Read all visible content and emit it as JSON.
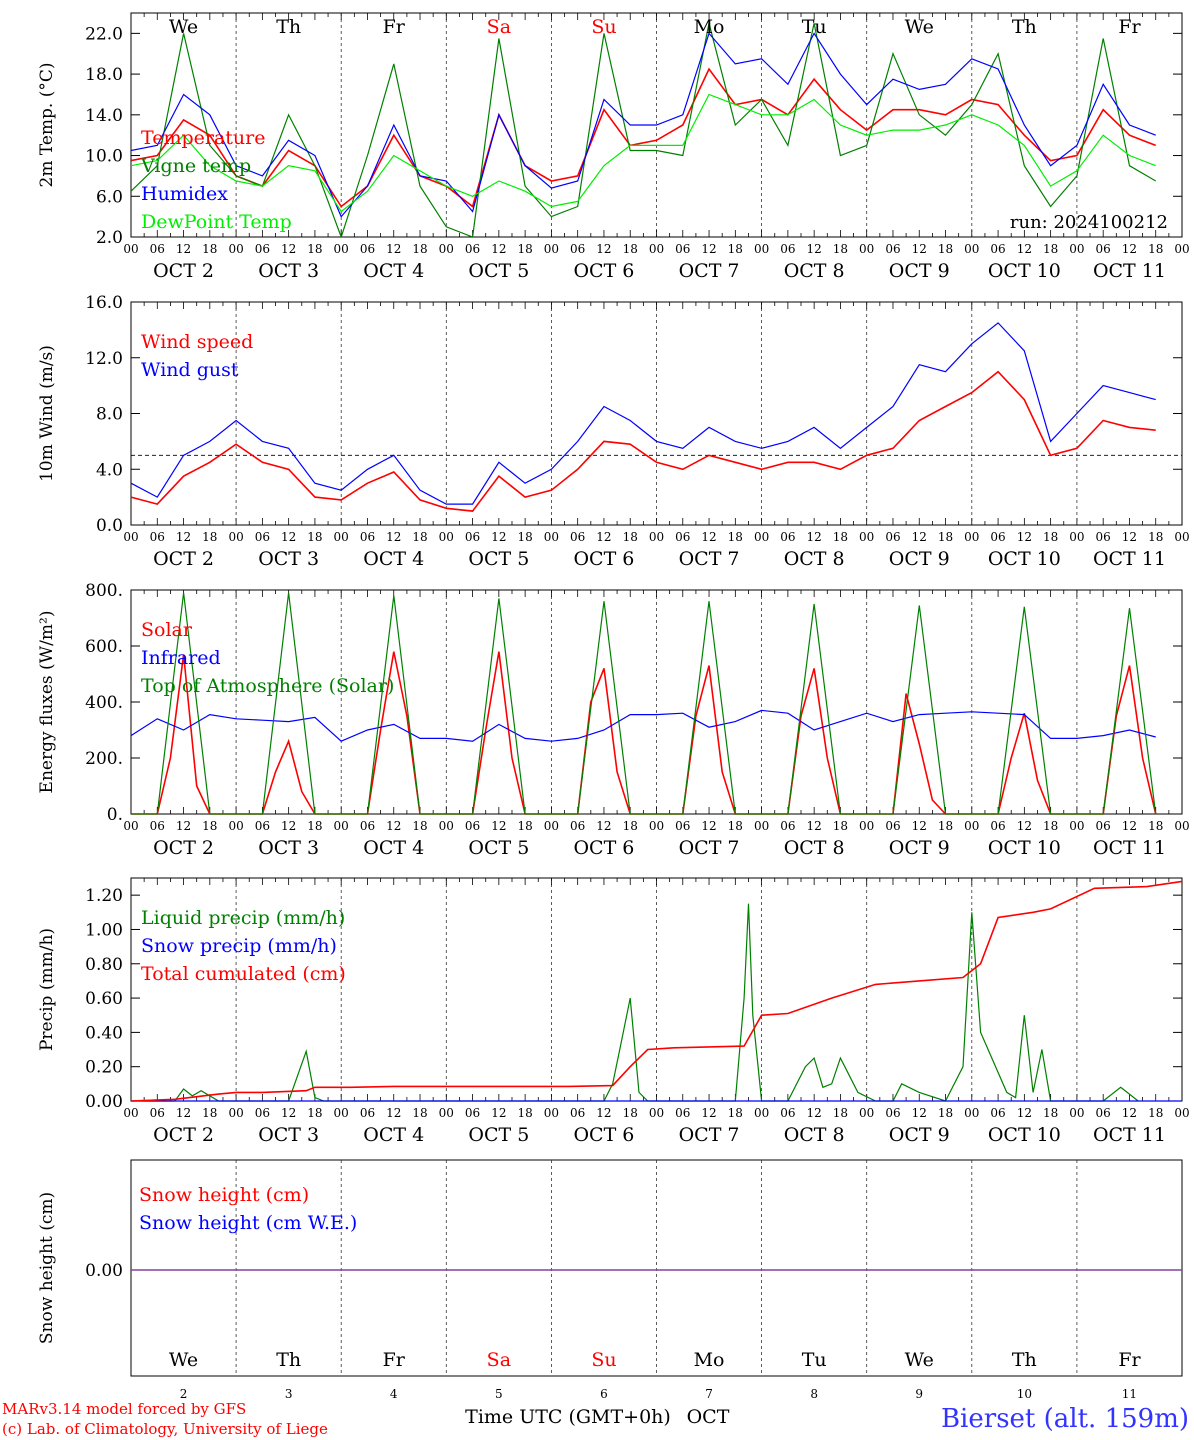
{
  "days": [
    {
      "abbr": "We",
      "num": "2",
      "oct": "OCT  2",
      "weekend": false
    },
    {
      "abbr": "Th",
      "num": "3",
      "oct": "OCT  3",
      "weekend": false
    },
    {
      "abbr": "Fr",
      "num": "4",
      "oct": "OCT  4",
      "weekend": false
    },
    {
      "abbr": "Sa",
      "num": "5",
      "oct": "OCT  5",
      "weekend": true
    },
    {
      "abbr": "Su",
      "num": "6",
      "oct": "OCT  6",
      "weekend": true
    },
    {
      "abbr": "Mo",
      "num": "7",
      "oct": "OCT  7",
      "weekend": false
    },
    {
      "abbr": "Tu",
      "num": "8",
      "oct": "OCT  8",
      "weekend": false
    },
    {
      "abbr": "We",
      "num": "9",
      "oct": "OCT  9",
      "weekend": false
    },
    {
      "abbr": "Th",
      "num": "10",
      "oct": "OCT 10",
      "weekend": false
    },
    {
      "abbr": "Fr",
      "num": "11",
      "oct": "OCT 11",
      "weekend": false
    }
  ],
  "hour_labels": [
    "00",
    "06",
    "12",
    "18"
  ],
  "colors": {
    "red": "#ff0000",
    "green": "#008000",
    "blue": "#0000ff",
    "lightgreen": "#00ee00",
    "purple": "#8040a0",
    "bierset": "#3333ff"
  },
  "run_label": "run: 2024100212",
  "x_axis_title": "Time UTC (GMT+0h)",
  "x_axis_month": "OCT",
  "credit_model": "MARv3.14 model forced by GFS",
  "credit_lab": "(c) Lab. of Climatology, University of Liege",
  "station": "Bierset (alt. 159m)",
  "chart_data": [
    {
      "type": "line",
      "ylabel": "2m Temp. (°C)",
      "ylim": [
        2,
        24
      ],
      "yticks": [
        "2.0",
        "6.0",
        "10.0",
        "14.0",
        "18.0",
        "22.0"
      ],
      "x_unit": "hours since OCT 2 00 UTC",
      "series": [
        {
          "name": "Temperature",
          "color": "red",
          "x": [
            0,
            6,
            12,
            18,
            24,
            30,
            36,
            42,
            48,
            54,
            60,
            66,
            72,
            78,
            84,
            90,
            96,
            102,
            108,
            114,
            120,
            126,
            132,
            138,
            144,
            150,
            156,
            162,
            168,
            174,
            180,
            186,
            192,
            198,
            204,
            210,
            216,
            222,
            228,
            234
          ],
          "y": [
            9.5,
            10,
            13.5,
            12,
            8,
            7,
            10.5,
            9,
            5,
            7,
            12,
            8,
            7,
            5,
            14,
            9,
            7.5,
            8,
            14.5,
            11,
            11.5,
            13,
            18.5,
            15,
            15.5,
            14,
            17.5,
            14.5,
            12.5,
            14.5,
            14.5,
            14,
            15.5,
            15,
            12,
            9.5,
            10,
            14.5,
            12,
            11
          ]
        },
        {
          "name": "Vigne temp",
          "color": "green",
          "x": [
            0,
            6,
            12,
            18,
            24,
            30,
            36,
            42,
            48,
            54,
            60,
            66,
            72,
            78,
            84,
            90,
            96,
            102,
            108,
            114,
            120,
            126,
            132,
            138,
            144,
            150,
            156,
            162,
            168,
            174,
            180,
            186,
            192,
            198,
            204,
            210,
            216,
            222,
            228,
            234
          ],
          "y": [
            6.5,
            9,
            22,
            11,
            8,
            7,
            14,
            9,
            2,
            10,
            19,
            7,
            3,
            2,
            21.5,
            7,
            4,
            5,
            22,
            10.5,
            10.5,
            10,
            23,
            13,
            15.5,
            11,
            23,
            10,
            11,
            20,
            14,
            12,
            15,
            20,
            9,
            5,
            8,
            21.5,
            9,
            7.5
          ]
        },
        {
          "name": "Humidex",
          "color": "blue",
          "x": [
            0,
            6,
            12,
            18,
            24,
            30,
            36,
            42,
            48,
            54,
            60,
            66,
            72,
            78,
            84,
            90,
            96,
            102,
            108,
            114,
            120,
            126,
            132,
            138,
            144,
            150,
            156,
            162,
            168,
            174,
            180,
            186,
            192,
            198,
            204,
            210,
            216,
            222,
            228,
            234
          ],
          "y": [
            10.5,
            11,
            16,
            14,
            9,
            8,
            11.5,
            10,
            4,
            7,
            13,
            8,
            7.5,
            4.5,
            14,
            9,
            6.8,
            7.5,
            15.5,
            13,
            13,
            14,
            22,
            19,
            19.5,
            17,
            22,
            18,
            15,
            17.5,
            16.5,
            17,
            19.5,
            18.5,
            13,
            9,
            11,
            17,
            13,
            12
          ]
        },
        {
          "name": "DewPoint Temp",
          "color": "lightgreen",
          "x": [
            0,
            6,
            12,
            18,
            24,
            30,
            36,
            42,
            48,
            54,
            60,
            66,
            72,
            78,
            84,
            90,
            96,
            102,
            108,
            114,
            120,
            126,
            132,
            138,
            144,
            150,
            156,
            162,
            168,
            174,
            180,
            186,
            192,
            198,
            204,
            210,
            216,
            222,
            228,
            234
          ],
          "y": [
            9,
            9.5,
            12,
            9,
            7.5,
            7,
            9,
            8.5,
            4.5,
            6.5,
            10,
            8.5,
            7,
            6,
            7.5,
            6.5,
            5,
            5.5,
            9,
            11,
            11,
            11,
            16,
            15,
            14,
            14,
            15.5,
            13,
            12,
            12.5,
            12.5,
            13,
            14,
            13,
            11,
            7,
            8.5,
            12,
            10,
            9
          ]
        }
      ]
    },
    {
      "type": "line",
      "ylabel": "10m Wind (m/s)",
      "ylim": [
        0,
        16
      ],
      "yticks": [
        "0.0",
        "4.0",
        "8.0",
        "12.0",
        "16.0"
      ],
      "threshold": 5,
      "series": [
        {
          "name": "Wind speed",
          "color": "red",
          "x": [
            0,
            6,
            12,
            18,
            24,
            30,
            36,
            42,
            48,
            54,
            60,
            66,
            72,
            78,
            84,
            90,
            96,
            102,
            108,
            114,
            120,
            126,
            132,
            138,
            144,
            150,
            156,
            162,
            168,
            174,
            180,
            186,
            192,
            198,
            204,
            210,
            216,
            222,
            228,
            234
          ],
          "y": [
            2,
            1.5,
            3.5,
            4.5,
            5.8,
            4.5,
            4,
            2,
            1.8,
            3,
            3.8,
            1.8,
            1.2,
            1,
            3.5,
            2,
            2.5,
            4,
            6,
            5.8,
            4.5,
            4,
            5,
            4.5,
            4,
            4.5,
            4.5,
            4,
            5,
            5.5,
            7.5,
            8.5,
            9.5,
            11,
            9,
            5,
            5.5,
            7.5,
            7,
            6.8
          ]
        },
        {
          "name": "Wind gust",
          "color": "blue",
          "x": [
            0,
            6,
            12,
            18,
            24,
            30,
            36,
            42,
            48,
            54,
            60,
            66,
            72,
            78,
            84,
            90,
            96,
            102,
            108,
            114,
            120,
            126,
            132,
            138,
            144,
            150,
            156,
            162,
            168,
            174,
            180,
            186,
            192,
            198,
            204,
            210,
            216,
            222,
            228,
            234
          ],
          "y": [
            3,
            2,
            5,
            6,
            7.5,
            6,
            5.5,
            3,
            2.5,
            4,
            5,
            2.5,
            1.5,
            1.5,
            4.5,
            3,
            4,
            6,
            8.5,
            7.5,
            6,
            5.5,
            7,
            6,
            5.5,
            6,
            7,
            5.5,
            7,
            8.5,
            11.5,
            11,
            13,
            14.5,
            12.5,
            6,
            8,
            10,
            9.5,
            9
          ]
        }
      ]
    },
    {
      "type": "line",
      "ylabel": "Energy fluxes (W/m²)",
      "ylim": [
        0,
        800
      ],
      "yticks": [
        "0.",
        "200.",
        "400.",
        "600.",
        "800."
      ],
      "series": [
        {
          "name": "Solar",
          "color": "red",
          "x": [
            0,
            6,
            9,
            12,
            15,
            18,
            24,
            30,
            33,
            36,
            39,
            42,
            48,
            54,
            57,
            60,
            63,
            66,
            72,
            78,
            81,
            84,
            87,
            90,
            96,
            102,
            105,
            108,
            111,
            114,
            120,
            126,
            129,
            132,
            135,
            138,
            144,
            150,
            153,
            156,
            159,
            162,
            168,
            174,
            177,
            180,
            183,
            186,
            192,
            198,
            201,
            204,
            207,
            210,
            216,
            222,
            225,
            228,
            231,
            234
          ],
          "y": [
            0,
            0,
            200,
            570,
            100,
            0,
            0,
            0,
            150,
            260,
            80,
            0,
            0,
            0,
            300,
            580,
            350,
            0,
            0,
            0,
            300,
            580,
            200,
            0,
            0,
            0,
            400,
            520,
            150,
            0,
            0,
            0,
            350,
            530,
            150,
            0,
            0,
            0,
            350,
            520,
            200,
            0,
            0,
            0,
            430,
            250,
            50,
            0,
            0,
            0,
            200,
            360,
            120,
            0,
            0,
            0,
            350,
            530,
            200,
            0
          ]
        },
        {
          "name": "Infrared",
          "color": "blue",
          "x": [
            0,
            6,
            12,
            18,
            24,
            30,
            36,
            42,
            48,
            54,
            60,
            66,
            72,
            78,
            84,
            90,
            96,
            102,
            108,
            114,
            120,
            126,
            132,
            138,
            144,
            150,
            156,
            162,
            168,
            174,
            180,
            186,
            192,
            198,
            204,
            210,
            216,
            222,
            228,
            234
          ],
          "y": [
            280,
            340,
            300,
            355,
            340,
            335,
            330,
            345,
            260,
            300,
            320,
            270,
            270,
            260,
            320,
            270,
            260,
            270,
            300,
            355,
            355,
            360,
            310,
            330,
            370,
            360,
            300,
            330,
            360,
            330,
            355,
            360,
            365,
            360,
            355,
            270,
            270,
            280,
            300,
            275
          ]
        },
        {
          "name": "Top of Atmosphere (Solar)",
          "color": "green",
          "x": [
            0,
            6,
            12,
            18,
            24,
            30,
            36,
            42,
            48,
            54,
            60,
            66,
            72,
            78,
            84,
            90,
            96,
            102,
            108,
            114,
            120,
            126,
            132,
            138,
            144,
            150,
            156,
            162,
            168,
            174,
            180,
            186,
            192,
            198,
            204,
            210,
            216,
            222,
            228,
            234
          ],
          "y": [
            0,
            0,
            790,
            0,
            0,
            0,
            790,
            0,
            0,
            0,
            780,
            0,
            0,
            0,
            770,
            0,
            0,
            0,
            760,
            0,
            0,
            0,
            760,
            0,
            0,
            0,
            750,
            0,
            0,
            0,
            745,
            0,
            0,
            0,
            740,
            0,
            0,
            0,
            735,
            0
          ]
        }
      ]
    },
    {
      "type": "line",
      "ylabel": "Precip (mm/h)",
      "ylim": [
        0,
        1.3
      ],
      "yticks": [
        "0.00",
        "0.20",
        "0.40",
        "0.60",
        "0.80",
        "1.00",
        "1.20"
      ],
      "series": [
        {
          "name": "Liquid precip (mm/h)",
          "color": "green",
          "x": [
            0,
            10,
            12,
            14,
            16,
            20,
            24,
            36,
            40,
            42,
            44,
            48,
            108,
            110,
            112,
            114,
            116,
            118,
            120,
            138,
            140,
            141,
            142,
            144,
            150,
            154,
            156,
            158,
            160,
            162,
            164,
            166,
            170,
            174,
            176,
            180,
            186,
            190,
            192,
            194,
            200,
            202,
            204,
            206,
            208,
            210,
            222,
            226,
            230
          ],
          "y": [
            0,
            0,
            0.07,
            0.03,
            0.06,
            0,
            0,
            0,
            0.29,
            0.02,
            0,
            0,
            0,
            0.1,
            0.35,
            0.6,
            0.05,
            0,
            0,
            0,
            0.6,
            1.15,
            0.5,
            0,
            0,
            0.2,
            0.25,
            0.08,
            0.1,
            0.25,
            0.15,
            0.05,
            0,
            0,
            0.1,
            0.05,
            0,
            0.2,
            1.1,
            0.4,
            0.05,
            0.02,
            0.5,
            0.05,
            0.3,
            0,
            0,
            0.08,
            0
          ]
        },
        {
          "name": "Snow precip (mm/h)",
          "color": "blue",
          "x": [
            0,
            240
          ],
          "y": [
            0,
            0
          ]
        },
        {
          "name": "Total cumulated (cm)",
          "color": "red",
          "x": [
            0,
            10,
            20,
            24,
            30,
            40,
            42,
            50,
            60,
            70,
            80,
            90,
            100,
            110,
            114,
            118,
            124,
            140,
            144,
            150,
            160,
            170,
            180,
            190,
            194,
            198,
            206,
            210,
            220,
            232,
            240
          ],
          "y": [
            0,
            0.01,
            0.04,
            0.05,
            0.05,
            0.06,
            0.08,
            0.08,
            0.085,
            0.085,
            0.085,
            0.085,
            0.085,
            0.09,
            0.2,
            0.3,
            0.31,
            0.32,
            0.5,
            0.51,
            0.6,
            0.68,
            0.7,
            0.72,
            0.8,
            1.07,
            1.1,
            1.12,
            1.24,
            1.25,
            1.28
          ]
        }
      ]
    },
    {
      "type": "line",
      "ylabel": "Snow height (cm)",
      "ytick": "0.00",
      "series": [
        {
          "name": "Snow height (cm)",
          "color": "red",
          "x": [
            0,
            240
          ],
          "y": [
            0,
            0
          ]
        },
        {
          "name": "Snow height (cm W.E.)",
          "color": "blue",
          "x": [
            0,
            240
          ],
          "y": [
            0,
            0
          ]
        }
      ]
    }
  ]
}
